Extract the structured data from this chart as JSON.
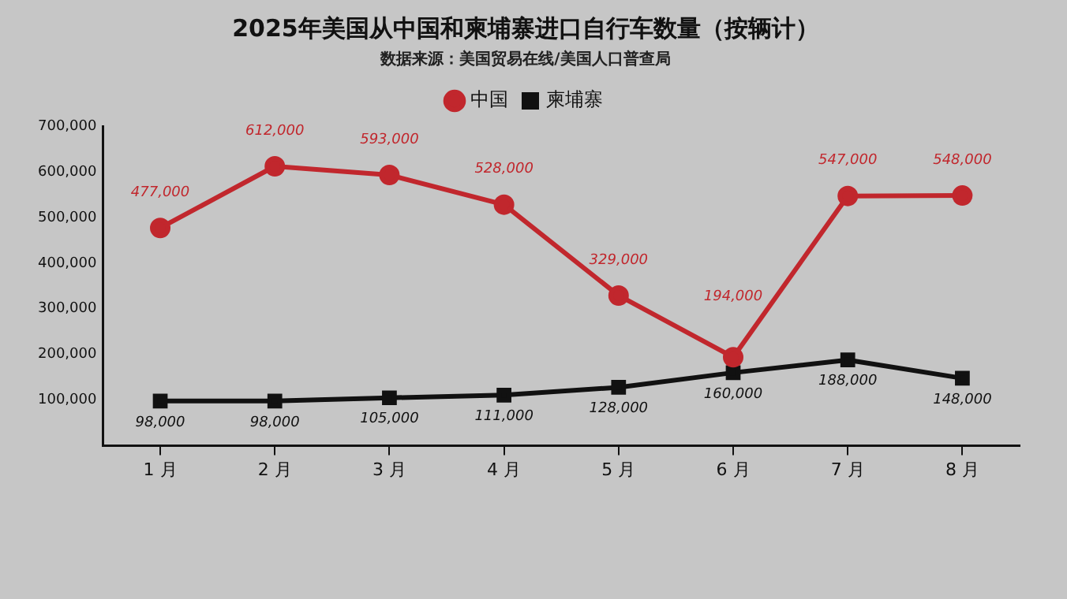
{
  "chart_data": {
    "type": "line",
    "title": "2025年美国从中国和柬埔寨进口自行车数量（按辆计）",
    "subtitle": "数据来源：美国贸易在线/美国人口普查局",
    "categories": [
      "1 月",
      "2 月",
      "3 月",
      "4 月",
      "5 月",
      "6 月",
      "7 月",
      "8 月"
    ],
    "series": [
      {
        "name": "中国",
        "color": "#c1272d",
        "marker": "circle",
        "values": [
          477000,
          612000,
          593000,
          528000,
          329000,
          194000,
          547000,
          548000
        ],
        "value_labels": [
          "477,000",
          "612,000",
          "593,000",
          "528,000",
          "329,000",
          "194,000",
          "547,000",
          "548,000"
        ]
      },
      {
        "name": "柬埔寨",
        "color": "#111111",
        "marker": "square",
        "values": [
          98000,
          98000,
          105000,
          111000,
          128000,
          160000,
          188000,
          148000
        ],
        "value_labels": [
          "98,000",
          "98,000",
          "105,000",
          "111,000",
          "128,000",
          "160,000",
          "188,000",
          "148,000"
        ]
      }
    ],
    "ylim": [
      0,
      700000
    ],
    "yticks": [
      {
        "value": 100000,
        "label": "100,000"
      },
      {
        "value": 200000,
        "label": "200,000"
      },
      {
        "value": 300000,
        "label": "300,000"
      },
      {
        "value": 400000,
        "label": "400,000"
      },
      {
        "value": 500000,
        "label": "500,000"
      },
      {
        "value": 600000,
        "label": "600,000"
      },
      {
        "value": 700000,
        "label": "700,000"
      }
    ],
    "grid": false,
    "legend": "top",
    "data_labels": true,
    "line_style": "solid"
  }
}
